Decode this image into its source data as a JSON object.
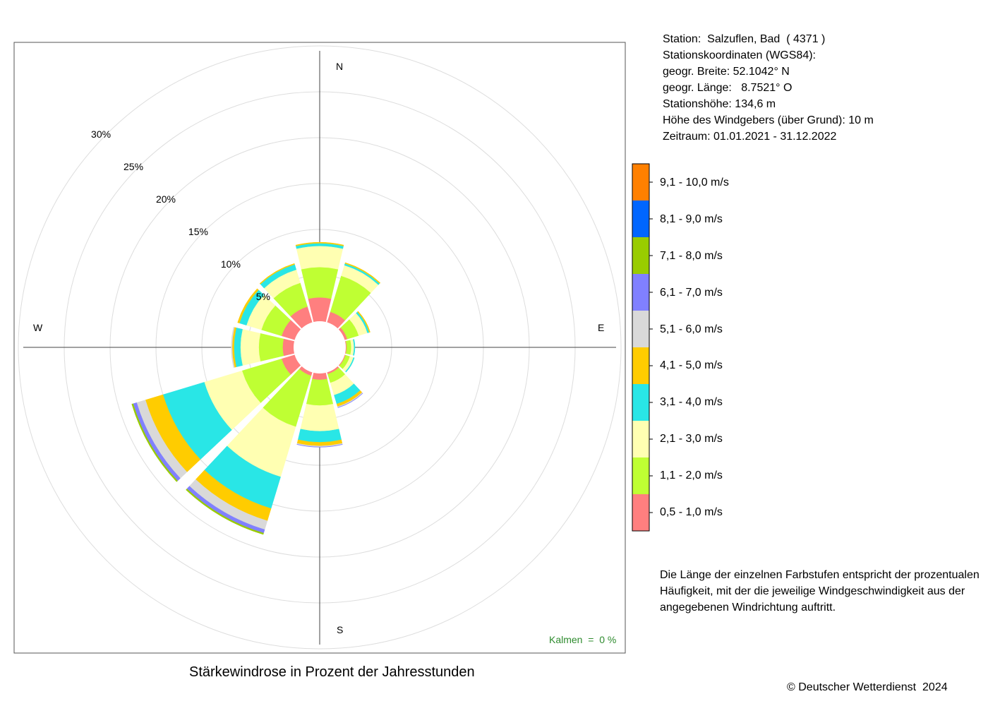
{
  "station": {
    "line1": "Station:  Salzuflen, Bad  ( 4371 )",
    "line2": "Stationskoordinaten (WGS84):",
    "line3": "geogr. Breite: 52.1042° N",
    "line4": "geogr. Länge:   8.7521° O",
    "line5": "Stationshöhe: 134,6 m",
    "line6": "Höhe des Windgebers (über Grund): 10 m",
    "line7": "Zeitraum: 01.01.2021 - 31.12.2022"
  },
  "compass": {
    "north": "N",
    "east": "E",
    "south": "S",
    "west": "W"
  },
  "kalmen": "Kalmen  =  0 %",
  "caption": "Stärkewindrose in Prozent der Jahresstunden",
  "note": "Die Länge der einzelnen Farbstufen entspricht der prozentualen Häufigkeit, mit der die jeweilige Windgeschwindigkeit aus der angegebenen Windrichtung auftritt.",
  "copyright": "© Deutscher Wetterdienst  2024",
  "legend": [
    {
      "label": "0,5 - 1,0 m/s",
      "color": "#ff7f7f"
    },
    {
      "label": "1,1 - 2,0 m/s",
      "color": "#bfff33"
    },
    {
      "label": "2,1 - 3,0 m/s",
      "color": "#ffffb2"
    },
    {
      "label": "3,1 - 4,0 m/s",
      "color": "#29e6e6"
    },
    {
      "label": "4,1 - 5,0 m/s",
      "color": "#ffcc00"
    },
    {
      "label": "5,1 - 6,0 m/s",
      "color": "#d9d9d9"
    },
    {
      "label": "6,1 - 7,0 m/s",
      "color": "#8080ff"
    },
    {
      "label": "7,1 - 8,0 m/s",
      "color": "#99cc00"
    },
    {
      "label": "8,1 - 9,0 m/s",
      "color": "#0066ff"
    },
    {
      "label": "9,1 - 10,0 m/s",
      "color": "#ff8000"
    }
  ],
  "chart_data": {
    "type": "windrose",
    "title": "Stärkewindrose in Prozent der Jahresstunden",
    "unit": "%",
    "rings": [
      5,
      10,
      15,
      20,
      25,
      30
    ],
    "ring_labels": [
      "5%",
      "10%",
      "15%",
      "20%",
      "25%",
      "30%"
    ],
    "calm_percent": 0,
    "directions_deg": [
      0,
      30,
      60,
      90,
      120,
      150,
      180,
      210,
      240,
      270,
      300,
      330
    ],
    "speed_classes": [
      "0,5 - 1,0 m/s",
      "1,1 - 2,0 m/s",
      "2,1 - 3,0 m/s",
      "3,1 - 4,0 m/s",
      "4,1 - 5,0 m/s",
      "5,1 - 6,0 m/s",
      "6,1 - 7,0 m/s",
      "7,1 - 8,0 m/s",
      "8,1 - 9,0 m/s",
      "9,1 - 10,0 m/s"
    ],
    "sectors": [
      {
        "dir": 0,
        "values": [
          2.6,
          3.3,
          2.3,
          0.3,
          0.1,
          0,
          0,
          0,
          0,
          0
        ]
      },
      {
        "dir": 30,
        "values": [
          1.2,
          4.1,
          1.2,
          0.2,
          0.1,
          0,
          0,
          0,
          0,
          0
        ]
      },
      {
        "dir": 60,
        "values": [
          0.3,
          1.3,
          1.0,
          0.2,
          0.1,
          0,
          0,
          0,
          0,
          0
        ]
      },
      {
        "dir": 90,
        "values": [
          0.1,
          0.5,
          0.3,
          0.1,
          0,
          0,
          0,
          0,
          0,
          0
        ]
      },
      {
        "dir": 120,
        "values": [
          0.1,
          0.5,
          0.4,
          0.1,
          0,
          0,
          0,
          0,
          0,
          0
        ]
      },
      {
        "dir": 150,
        "values": [
          0.2,
          1.0,
          1.4,
          1.0,
          0.3,
          0.1,
          0.03,
          0,
          0,
          0
        ]
      },
      {
        "dir": 180,
        "values": [
          0.7,
          2.8,
          2.8,
          1.2,
          0.4,
          0.1,
          0.03,
          0,
          0,
          0
        ]
      },
      {
        "dir": 210,
        "values": [
          0.4,
          5.8,
          5.7,
          3.6,
          1.4,
          1.0,
          0.4,
          0.15,
          0,
          0
        ]
      },
      {
        "dir": 240,
        "values": [
          1.5,
          4.5,
          4.3,
          4.7,
          2.0,
          1.0,
          0.4,
          0.15,
          0,
          0
        ]
      },
      {
        "dir": 270,
        "values": [
          1.2,
          2.6,
          2.0,
          0.7,
          0.2,
          0.1,
          0,
          0,
          0,
          0
        ]
      },
      {
        "dir": 300,
        "values": [
          1.5,
          2.3,
          1.7,
          0.8,
          0.2,
          0,
          0,
          0,
          0,
          0
        ]
      },
      {
        "dir": 330,
        "values": [
          1.8,
          2.7,
          1.5,
          0.6,
          0.1,
          0,
          0,
          0,
          0,
          0
        ]
      }
    ]
  }
}
